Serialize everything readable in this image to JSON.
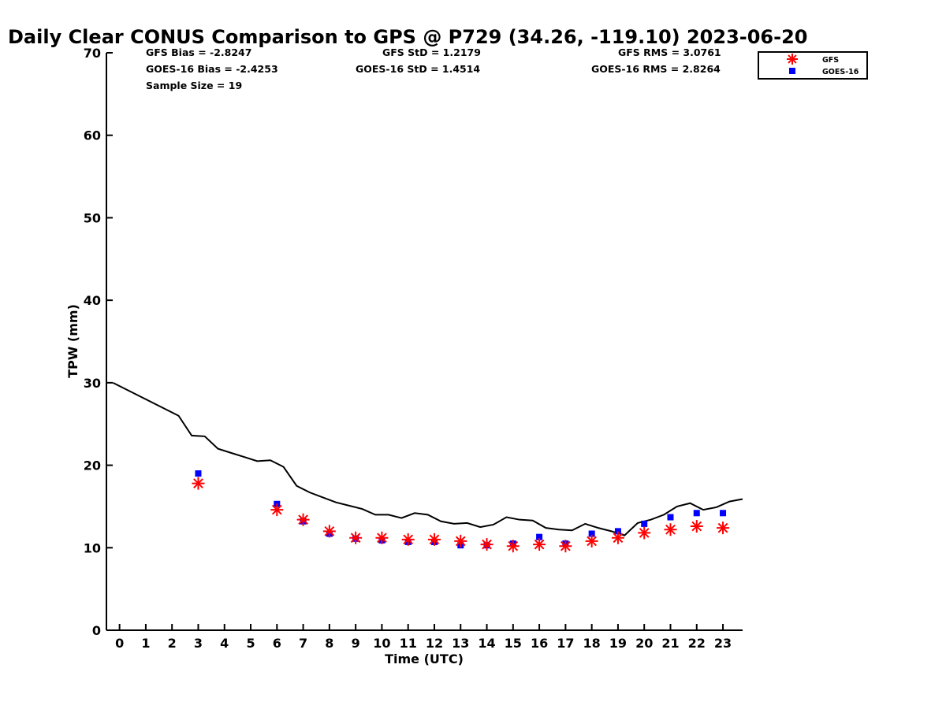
{
  "chart_data": {
    "type": "scatter",
    "title": "Daily Clear CONUS Comparison to GPS @ P729 (34.26, -119.10) 2023-06-20",
    "xlabel": "Time (UTC)",
    "ylabel": "TPW (mm)",
    "xlim": [
      -0.5,
      23.75
    ],
    "ylim": [
      0,
      70
    ],
    "x_ticks": [
      0,
      1,
      2,
      3,
      4,
      5,
      6,
      7,
      8,
      9,
      10,
      11,
      12,
      13,
      14,
      15,
      16,
      17,
      18,
      19,
      20,
      21,
      22,
      23
    ],
    "y_ticks": [
      0,
      10,
      20,
      30,
      40,
      50,
      60,
      70
    ],
    "grid": false,
    "legend_position": "top-right",
    "stats": [
      {
        "label": "GFS Bias = -2.8247"
      },
      {
        "label": "GFS StD = 1.2179"
      },
      {
        "label": "GFS RMS = 3.0761"
      },
      {
        "label": "GOES-16 Bias = -2.4253"
      },
      {
        "label": "GOES-16 StD = 1.4514"
      },
      {
        "label": "GOES-16 RMS = 2.8264"
      },
      {
        "label": "Sample Size = 19"
      }
    ],
    "series": [
      {
        "type": "line",
        "color": "#000000",
        "x": [
          -0.25,
          0.25,
          0.75,
          1.25,
          1.75,
          2.25,
          2.75,
          3.25,
          3.75,
          4.25,
          4.75,
          5.25,
          5.75,
          6.25,
          6.75,
          7.25,
          7.75,
          8.25,
          8.75,
          9.25,
          9.75,
          10.25,
          10.75,
          11.25,
          11.75,
          12.25,
          12.75,
          13.25,
          13.75,
          14.25,
          14.75,
          15.25,
          15.75,
          16.25,
          16.75,
          17.25,
          17.75,
          18.25,
          18.75,
          19.25,
          19.75,
          20.25,
          20.75,
          21.25,
          21.75,
          22.25,
          22.75,
          23.25,
          23.75
        ],
        "y": [
          30.0,
          29.2,
          28.4,
          27.6,
          26.8,
          26.0,
          23.6,
          23.5,
          22.0,
          21.5,
          21.0,
          20.5,
          20.6,
          19.8,
          17.5,
          16.7,
          16.1,
          15.5,
          15.1,
          14.7,
          14.0,
          14.0,
          13.6,
          14.2,
          14.0,
          13.2,
          12.9,
          13.0,
          12.5,
          12.8,
          13.7,
          13.4,
          13.3,
          12.4,
          12.2,
          12.1,
          12.9,
          12.4,
          12.0,
          11.5,
          13.0,
          13.4,
          14.0,
          15.0,
          15.4,
          14.6,
          14.9,
          15.6,
          15.9
        ]
      },
      {
        "name": "GFS",
        "type": "scatter",
        "marker": "asterisk",
        "color": "#ff0000",
        "x": [
          3,
          6,
          7,
          8,
          9,
          10,
          11,
          12,
          13,
          14,
          15,
          16,
          17,
          18,
          19,
          20,
          21,
          22,
          23
        ],
        "y": [
          17.8,
          14.6,
          13.4,
          12.0,
          11.2,
          11.2,
          11.0,
          11.0,
          10.8,
          10.4,
          10.2,
          10.4,
          10.2,
          10.8,
          11.2,
          11.8,
          12.2,
          12.6,
          12.4
        ]
      },
      {
        "name": "GOES-16",
        "type": "scatter",
        "marker": "square",
        "color": "#0000ff",
        "x": [
          3,
          6,
          7,
          8,
          9,
          10,
          11,
          12,
          13,
          14,
          15,
          16,
          17,
          18,
          19,
          20,
          21,
          22,
          23
        ],
        "y": [
          19.0,
          15.3,
          13.2,
          11.7,
          11.1,
          10.9,
          10.7,
          10.7,
          10.3,
          10.3,
          10.5,
          11.3,
          10.5,
          11.7,
          12.0,
          12.9,
          13.7,
          14.2,
          14.2
        ]
      }
    ]
  }
}
